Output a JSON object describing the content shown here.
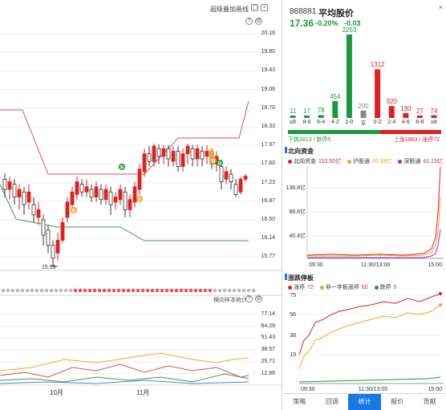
{
  "toolbar": {
    "overlay_label": "超级叠加",
    "layout_label": "画线",
    "help_icon": "help-icon",
    "settings_icon": "gear-icon"
  },
  "kline": {
    "price_axis": [
      "20.16",
      "19.80",
      "19.43",
      "19.06",
      "18.70",
      "18.33",
      "17.97",
      "17.60",
      "17.23",
      "16.87",
      "16.50",
      "16.14",
      "15.77"
    ],
    "low_marker": "15.59",
    "badges": [
      "B",
      "B",
      "B",
      "B",
      "B"
    ],
    "indicator_title": "横向样本统计",
    "indicator_axis": [
      "77.14",
      "64.29",
      "51.43",
      "38.57",
      "25.71",
      "12.86"
    ],
    "x_labels": [
      "10月",
      "11月"
    ]
  },
  "quote": {
    "code": "888881",
    "name": "平均股价",
    "price": "17.36",
    "pct": "-0.20%",
    "change": "-0.03"
  },
  "distribution": {
    "categories": [
      "≤8",
      "8-6",
      "6-4",
      "4-2",
      "2-0",
      "平",
      "0-2",
      "2-4",
      "4-6",
      "6-8",
      "≥8"
    ],
    "values": [
      11,
      17,
      78,
      454,
      2253,
      200,
      1312,
      320,
      130,
      27,
      74
    ],
    "colors": [
      "#1a9a3e",
      "#1a9a3e",
      "#1a9a3e",
      "#1a9a3e",
      "#1a9a3e",
      "#888888",
      "#e02020",
      "#e02020",
      "#e02020",
      "#e02020",
      "#e02020"
    ],
    "down_text": "下跌2813 / 跌停5",
    "up_text": "上涨1863 / 涨停72"
  },
  "northbound": {
    "title": "北向资金",
    "legend": [
      {
        "name": "北向资金",
        "value": "110.50亿",
        "color": "#e02020"
      },
      {
        "name": "沪股通",
        "value": "69.38亿",
        "color": "#f5a623"
      },
      {
        "name": "深股通",
        "value": "41.13亿",
        "color": "#9b30c8"
      }
    ],
    "y_labels": [
      "136.8亿",
      "88.6亿",
      "40.4亿"
    ],
    "x_labels": [
      "09:30",
      "11:30/13:00",
      "15:00"
    ]
  },
  "limit": {
    "title": "涨跌停板",
    "legend": [
      {
        "name": "涨停",
        "value": "72",
        "color": "#e02020"
      },
      {
        "name": "非一字板涨停",
        "value": "60",
        "color": "#f5a623"
      },
      {
        "name": "跌停",
        "value": "5",
        "color": "#1a9a3e"
      }
    ],
    "y_labels": [
      "75",
      "56",
      "38",
      "19"
    ],
    "x_labels": [
      "09:30",
      "11:30/13:00",
      "15:00"
    ]
  },
  "tabs": [
    "策略",
    "回调",
    "统计",
    "报价",
    "贡献"
  ],
  "active_tab": "统计"
}
